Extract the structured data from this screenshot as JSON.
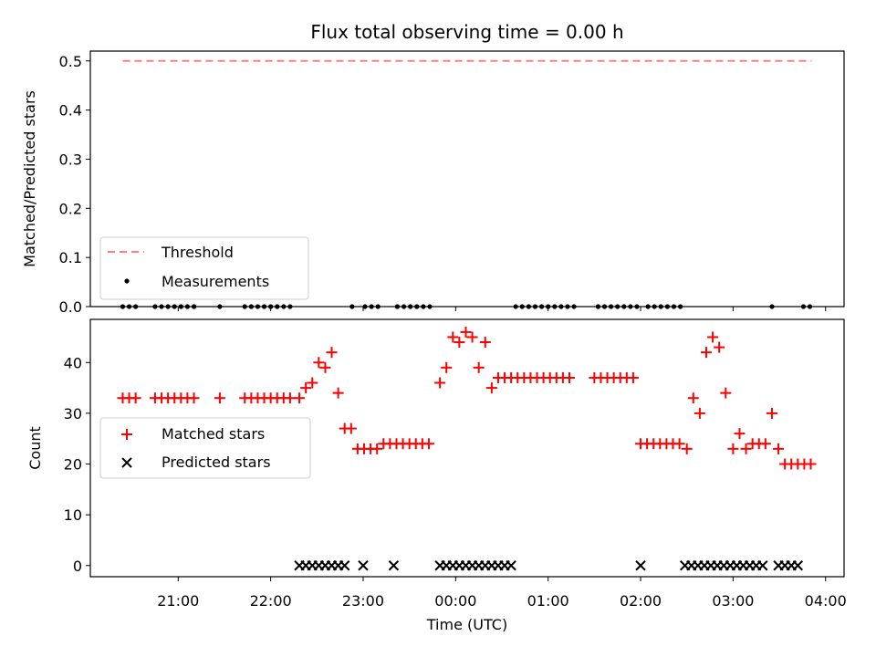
{
  "chart_data": [
    {
      "type": "scatter",
      "title": "Flux total observing time = 0.00 h",
      "ylabel": "Matched/Predicted stars",
      "xlabel": "",
      "ylim": [
        0,
        0.52
      ],
      "xlim_hours": [
        -3.95,
        4.2
      ],
      "yticks": [
        0.0,
        0.1,
        0.2,
        0.3,
        0.4,
        0.5
      ],
      "ytick_labels": [
        "0.0",
        "0.1",
        "0.2",
        "0.3",
        "0.4",
        "0.5"
      ],
      "threshold": {
        "value": 0.5,
        "x_range": [
          -3.6,
          3.85
        ],
        "color": "#ff7f7f"
      },
      "legend": [
        {
          "label": "Threshold",
          "marker": "dash",
          "color": "#ff7f7f"
        },
        {
          "label": "Measurements",
          "marker": "dot",
          "color": "#000000"
        }
      ],
      "measurements": {
        "x": [
          -3.6,
          -3.53,
          -3.46,
          -3.25,
          -3.18,
          -3.11,
          -3.04,
          -2.97,
          -2.9,
          -2.83,
          -2.55,
          -2.28,
          -2.21,
          -2.14,
          -2.07,
          -2.0,
          -1.93,
          -1.86,
          -1.79,
          -1.12,
          -0.98,
          -0.91,
          -0.84,
          -0.63,
          -0.56,
          -0.49,
          -0.42,
          -0.35,
          -0.28,
          0.65,
          0.72,
          0.79,
          0.86,
          0.93,
          1.0,
          1.07,
          1.14,
          1.21,
          1.28,
          1.54,
          1.61,
          1.68,
          1.75,
          1.82,
          1.89,
          1.96,
          2.08,
          2.15,
          2.22,
          2.29,
          2.36,
          2.43,
          3.42,
          3.76,
          3.83
        ],
        "y_value": 0.0
      }
    },
    {
      "type": "scatter",
      "title": "",
      "xlabel": "Time (UTC)",
      "ylabel": "Count",
      "ylim": [
        -2.2,
        48.5
      ],
      "xlim_hours": [
        -3.95,
        4.2
      ],
      "yticks": [
        0,
        10,
        20,
        30,
        40
      ],
      "ytick_labels": [
        "0",
        "10",
        "20",
        "30",
        "40"
      ],
      "xticks_hours": [
        -3,
        -2,
        -1,
        0,
        1,
        2,
        3,
        4
      ],
      "xtick_labels": [
        "21:00",
        "22:00",
        "23:00",
        "00:00",
        "01:00",
        "02:00",
        "03:00",
        "04:00"
      ],
      "legend": [
        {
          "label": "Matched stars",
          "marker": "plus",
          "color": "#ff0000"
        },
        {
          "label": "Predicted stars",
          "marker": "x",
          "color": "#000000"
        }
      ],
      "series": [
        {
          "name": "Matched stars",
          "color": "#ff0000",
          "marker": "plus",
          "x": [
            -3.6,
            -3.53,
            -3.46,
            -3.25,
            -3.18,
            -3.11,
            -3.04,
            -2.97,
            -2.9,
            -2.83,
            -2.55,
            -2.28,
            -2.21,
            -2.14,
            -2.07,
            -2.0,
            -1.93,
            -1.86,
            -1.79,
            -1.69,
            -1.62,
            -1.55,
            -1.48,
            -1.41,
            -1.34,
            -1.27,
            -1.2,
            -1.13,
            -1.06,
            -0.99,
            -0.92,
            -0.85,
            -0.78,
            -0.71,
            -0.64,
            -0.57,
            -0.5,
            -0.43,
            -0.36,
            -0.29,
            -0.17,
            -0.1,
            -0.03,
            0.04,
            0.11,
            0.18,
            0.25,
            0.32,
            0.39,
            0.46,
            0.53,
            0.6,
            0.67,
            0.74,
            0.81,
            0.88,
            0.95,
            1.02,
            1.09,
            1.16,
            1.23,
            1.5,
            1.57,
            1.64,
            1.71,
            1.78,
            1.85,
            1.92,
            2.0,
            2.07,
            2.14,
            2.21,
            2.28,
            2.35,
            2.42,
            2.5,
            2.57,
            2.64,
            2.71,
            2.78,
            2.85,
            2.92,
            3.0,
            3.07,
            3.14,
            3.21,
            3.28,
            3.35,
            3.42,
            3.49,
            3.56,
            3.63,
            3.7,
            3.77,
            3.84
          ],
          "y": [
            33,
            33,
            33,
            33,
            33,
            33,
            33,
            33,
            33,
            33,
            33,
            33,
            33,
            33,
            33,
            33,
            33,
            33,
            33,
            33,
            35,
            36,
            40,
            39,
            42,
            34,
            27,
            27,
            23,
            23,
            23,
            23,
            24,
            24,
            24,
            24,
            24,
            24,
            24,
            24,
            36,
            39,
            45,
            44,
            46,
            45,
            39,
            44,
            35,
            37,
            37,
            37,
            37,
            37,
            37,
            37,
            37,
            37,
            37,
            37,
            37,
            37,
            37,
            37,
            37,
            37,
            37,
            37,
            24,
            24,
            24,
            24,
            24,
            24,
            24,
            23,
            33,
            30,
            42,
            45,
            43,
            34,
            23,
            26,
            23,
            24,
            24,
            24,
            30,
            23,
            20,
            20,
            20,
            20,
            20
          ]
        },
        {
          "name": "Predicted stars",
          "color": "#000000",
          "marker": "x",
          "x": [
            -1.69,
            -1.62,
            -1.55,
            -1.48,
            -1.41,
            -1.34,
            -1.27,
            -1.2,
            -1.0,
            -0.67,
            -0.17,
            -0.1,
            -0.03,
            0.04,
            0.11,
            0.18,
            0.25,
            0.32,
            0.39,
            0.46,
            0.53,
            0.6,
            2.0,
            2.48,
            2.55,
            2.62,
            2.69,
            2.76,
            2.83,
            2.9,
            2.97,
            3.04,
            3.11,
            3.18,
            3.25,
            3.32,
            3.49,
            3.56,
            3.63,
            3.7
          ],
          "y_value": 0
        }
      ]
    }
  ]
}
